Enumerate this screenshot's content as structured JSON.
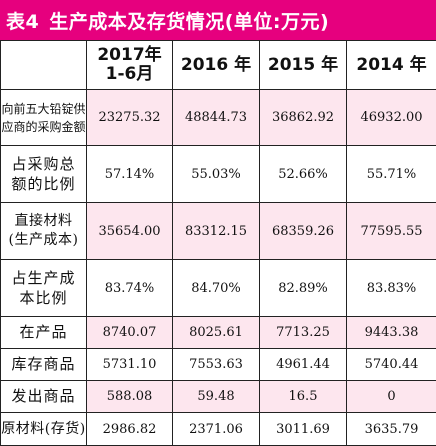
{
  "title": {
    "label": "表4",
    "text": "生产成本及存货情况(单位:万元)"
  },
  "colors": {
    "title_bg": "#e6007e",
    "row_tint": "#fde6ee"
  },
  "columns": [
    "2017年\n1-6月",
    "2016 年",
    "2015 年",
    "2014 年"
  ],
  "rows": [
    {
      "label": "向前五大铅锭供\n应商的采购金额",
      "values": [
        "23275.32",
        "48844.73",
        "36862.92",
        "46932.00"
      ]
    },
    {
      "label": "占采购总\n额的比例",
      "values": [
        "57.14%",
        "55.03%",
        "52.66%",
        "55.71%"
      ]
    },
    {
      "label": "直接材料\n(生产成本)",
      "values": [
        "35654.00",
        "83312.15",
        "68359.26",
        "77595.55"
      ]
    },
    {
      "label": "占生产成\n本比例",
      "values": [
        "83.74%",
        "84.70%",
        "82.89%",
        "83.83%"
      ]
    },
    {
      "label": "在产品",
      "values": [
        "8740.07",
        "8025.61",
        "7713.25",
        "9443.38"
      ]
    },
    {
      "label": "库存商品",
      "values": [
        "5731.10",
        "7553.63",
        "4961.44",
        "5740.44"
      ]
    },
    {
      "label": "发出商品",
      "values": [
        "588.08",
        "59.48",
        "16.5",
        "0"
      ]
    },
    {
      "label": "原材料(存货)",
      "values": [
        "2986.82",
        "2371.06",
        "3011.69",
        "3635.79"
      ]
    }
  ]
}
